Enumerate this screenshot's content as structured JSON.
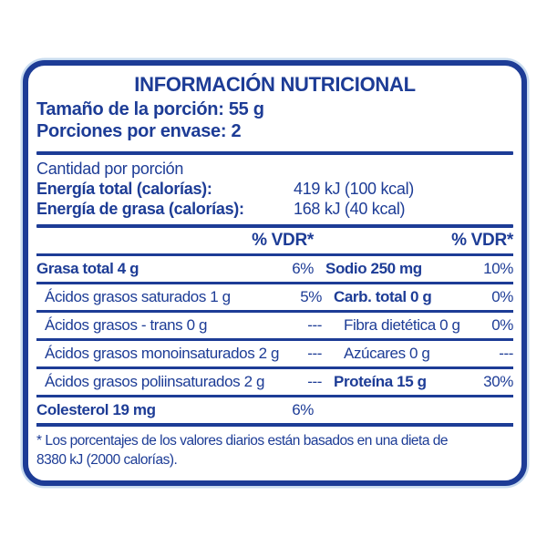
{
  "colors": {
    "accent": "#1d3c96",
    "halo": "#c9dcef",
    "background": "#ffffff"
  },
  "label": {
    "title": "INFORMACIÓN NUTRICIONAL",
    "serving": {
      "size": "Tamaño de la porción: 55 g",
      "per_package": "Porciones por envase: 2"
    },
    "energy": {
      "heading": "Cantidad por porción",
      "rows": [
        {
          "label": "Energía total (calorías):",
          "value": "419 kJ (100 kcal)"
        },
        {
          "label": "Energía de grasa (calorías):",
          "value": "168 kJ (40 kcal)"
        }
      ]
    },
    "table": {
      "vdr_header_left": "% VDR*",
      "vdr_header_right": "% VDR*",
      "rows": [
        {
          "left_name": "Grasa total 4 g",
          "left_pct": "6%",
          "right_name": "Sodio 250 mg",
          "right_pct": "10%"
        },
        {
          "left_name": "Ácidos grasos saturados 1 g",
          "left_pct": "5%",
          "right_name": "Carb. total 0 g",
          "right_pct": "0%"
        },
        {
          "left_name": "Ácidos grasos - trans 0 g",
          "left_pct": "---",
          "right_name": "Fibra dietética 0 g",
          "right_pct": "0%"
        },
        {
          "left_name": "Ácidos grasos monoinsaturados 2 g",
          "left_pct": "---",
          "right_name": "Azúcares 0 g",
          "right_pct": "---"
        },
        {
          "left_name": "Ácidos grasos poliinsaturados 2 g",
          "left_pct": "---",
          "right_name": "Proteína 15 g",
          "right_pct": "30%"
        },
        {
          "left_name": "Colesterol 19 mg",
          "left_pct": "6%",
          "right_name": "",
          "right_pct": ""
        }
      ]
    },
    "footnote": {
      "line1": "* Los porcentajes de los valores diarios están basados en una dieta de",
      "line2": "8380 kJ (2000 calorías)."
    }
  }
}
